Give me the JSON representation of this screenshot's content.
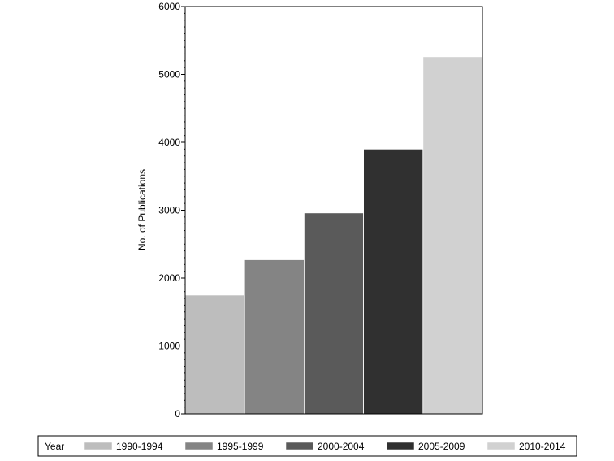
{
  "chart_data": {
    "type": "bar",
    "title": "",
    "xlabel": "",
    "ylabel": "No. of Publications",
    "ylim": [
      0,
      6000
    ],
    "yticks": [
      0,
      1000,
      2000,
      3000,
      4000,
      5000,
      6000
    ],
    "y_minor_ticks_per_major": 10,
    "grid": false,
    "legend": {
      "title": "Year",
      "position": "bottom"
    },
    "categories": [
      "1990-1994",
      "1995-1999",
      "2000-2004",
      "2005-2009",
      "2010-2014"
    ],
    "values": [
      1750,
      2270,
      2960,
      3900,
      5260
    ],
    "colors": [
      "#bdbdbd",
      "#848484",
      "#5a5a5a",
      "#303030",
      "#d1d1d1"
    ]
  }
}
